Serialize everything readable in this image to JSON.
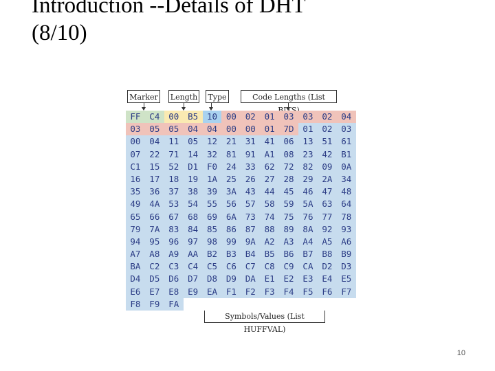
{
  "title": {
    "line1": "Introduction  --Details of DHT",
    "line2": "(8/10)"
  },
  "labels": {
    "marker": "Marker",
    "length": "Length",
    "type": "Type",
    "code_lengths": "Code Lengths (List BITS)",
    "symbols": "Symbols/Values (List HUFFVAL)"
  },
  "hex_rows": [
    [
      "FF",
      "C4",
      "00",
      "B5",
      "10",
      "00",
      "02",
      "01",
      "03",
      "03",
      "02",
      "04"
    ],
    [
      "03",
      "05",
      "05",
      "04",
      "04",
      "00",
      "00",
      "01",
      "7D",
      "01",
      "02",
      "03"
    ],
    [
      "00",
      "04",
      "11",
      "05",
      "12",
      "21",
      "31",
      "41",
      "06",
      "13",
      "51",
      "61"
    ],
    [
      "07",
      "22",
      "71",
      "14",
      "32",
      "81",
      "91",
      "A1",
      "08",
      "23",
      "42",
      "B1"
    ],
    [
      "C1",
      "15",
      "52",
      "D1",
      "F0",
      "24",
      "33",
      "62",
      "72",
      "82",
      "09",
      "0A"
    ],
    [
      "16",
      "17",
      "18",
      "19",
      "1A",
      "25",
      "26",
      "27",
      "28",
      "29",
      "2A",
      "34"
    ],
    [
      "35",
      "36",
      "37",
      "38",
      "39",
      "3A",
      "43",
      "44",
      "45",
      "46",
      "47",
      "48"
    ],
    [
      "49",
      "4A",
      "53",
      "54",
      "55",
      "56",
      "57",
      "58",
      "59",
      "5A",
      "63",
      "64"
    ],
    [
      "65",
      "66",
      "67",
      "68",
      "69",
      "6A",
      "73",
      "74",
      "75",
      "76",
      "77",
      "78"
    ],
    [
      "79",
      "7A",
      "83",
      "84",
      "85",
      "86",
      "87",
      "88",
      "89",
      "8A",
      "92",
      "93"
    ],
    [
      "94",
      "95",
      "96",
      "97",
      "98",
      "99",
      "9A",
      "A2",
      "A3",
      "A4",
      "A5",
      "A6"
    ],
    [
      "A7",
      "A8",
      "A9",
      "AA",
      "B2",
      "B3",
      "B4",
      "B5",
      "B6",
      "B7",
      "B8",
      "B9"
    ],
    [
      "BA",
      "C2",
      "C3",
      "C4",
      "C5",
      "C6",
      "C7",
      "C8",
      "C9",
      "CA",
      "D2",
      "D3"
    ],
    [
      "D4",
      "D5",
      "D6",
      "D7",
      "D8",
      "D9",
      "DA",
      "E1",
      "E2",
      "E3",
      "E4",
      "E5"
    ],
    [
      "E6",
      "E7",
      "E8",
      "E9",
      "EA",
      "F1",
      "F2",
      "F3",
      "F4",
      "F5",
      "F6",
      "F7"
    ],
    [
      "F8",
      "F9",
      "FA"
    ]
  ],
  "colors": {
    "marker": "#cfe3c7",
    "length": "#faeab2",
    "type": "#a9d2ef",
    "code_lengths": "#f0c3ba",
    "symbols": "#c7dcee",
    "hex_text": "#2b3c85"
  },
  "page_number": "10"
}
